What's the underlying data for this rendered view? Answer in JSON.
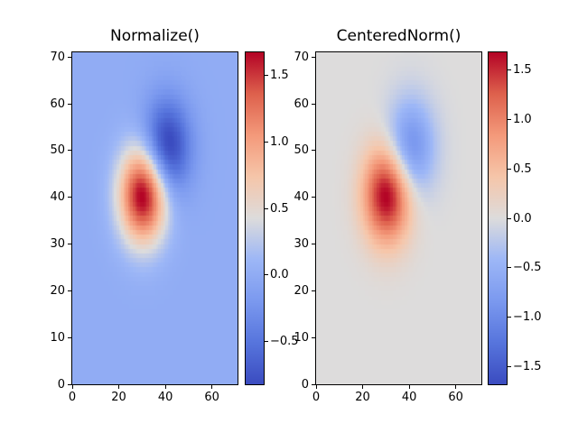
{
  "figure": {
    "background": "#ffffff",
    "text_color": "#000000",
    "axes_edge_color": "#000000"
  },
  "colormap": {
    "name": "coolwarm",
    "stops": [
      [
        0.0,
        "#3b4cc0"
      ],
      [
        0.125,
        "#5775dd"
      ],
      [
        0.25,
        "#7b99ef"
      ],
      [
        0.375,
        "#9db7f7"
      ],
      [
        0.5,
        "#dddcdc"
      ],
      [
        0.625,
        "#f6c6aa"
      ],
      [
        0.75,
        "#f49a7b"
      ],
      [
        0.875,
        "#de614d"
      ],
      [
        1.0,
        "#b40426"
      ]
    ]
  },
  "chart_data": [
    {
      "type": "heatmap",
      "title": "Normalize()",
      "xlabel": "",
      "ylabel": "",
      "xlim": [
        0,
        71
      ],
      "ylim": [
        0,
        71
      ],
      "xticks": [
        0,
        20,
        40,
        60
      ],
      "xtick_labels": [
        "0",
        "20",
        "40",
        "60"
      ],
      "yticks": [
        0,
        10,
        20,
        30,
        40,
        50,
        60,
        70
      ],
      "ytick_labels": [
        "0",
        "10",
        "20",
        "30",
        "40",
        "50",
        "60",
        "70"
      ],
      "grid": {
        "nx": 71,
        "ny": 71
      },
      "field": {
        "description": "Z = 1.8*exp(-((x-30)^2+(y-40)^2)/100) - 1.0*exp(-((x-40)^2+(y-50)^2)/100); positive peak ~1.68 at (30,40), negative trough ~-0.82 at (41,51)",
        "gaussians": [
          {
            "amplitude": 1.8,
            "x0": 30,
            "y0": 40,
            "sigma": 7.0711
          },
          {
            "amplitude": -1.0,
            "x0": 40,
            "y0": 50,
            "sigma": 7.0711
          }
        ]
      },
      "norm": {
        "type": "linear",
        "vmin": -0.82,
        "vmax": 1.68
      },
      "colorbar": {
        "ticks": [
          1.5,
          1.0,
          0.5,
          0.0,
          -0.5
        ],
        "tick_labels": [
          "1.5",
          "1.0",
          "0.5",
          "0.0",
          "−0.5"
        ]
      }
    },
    {
      "type": "heatmap",
      "title": "CenteredNorm()",
      "xlabel": "",
      "ylabel": "",
      "xlim": [
        0,
        71
      ],
      "ylim": [
        0,
        71
      ],
      "xticks": [
        0,
        20,
        40,
        60
      ],
      "xtick_labels": [
        "0",
        "20",
        "40",
        "60"
      ],
      "yticks": [
        0,
        10,
        20,
        30,
        40,
        50,
        60,
        70
      ],
      "ytick_labels": [
        "0",
        "10",
        "20",
        "30",
        "40",
        "50",
        "60",
        "70"
      ],
      "grid": {
        "nx": 71,
        "ny": 71
      },
      "field": {
        "description": "Same Z field as left plot, displayed with CenteredNorm (vcenter=0, symmetric halfrange)",
        "gaussians": [
          {
            "amplitude": 1.8,
            "x0": 30,
            "y0": 40,
            "sigma": 7.0711
          },
          {
            "amplitude": -1.0,
            "x0": 40,
            "y0": 50,
            "sigma": 7.0711
          }
        ]
      },
      "norm": {
        "type": "centered",
        "vcenter": 0.0,
        "halfrange": 1.68
      },
      "colorbar": {
        "ticks": [
          1.5,
          1.0,
          0.5,
          0.0,
          -0.5,
          -1.0,
          -1.5
        ],
        "tick_labels": [
          "1.5",
          "1.0",
          "0.5",
          "0.0",
          "−0.5",
          "−1.0",
          "−1.5"
        ]
      }
    }
  ]
}
